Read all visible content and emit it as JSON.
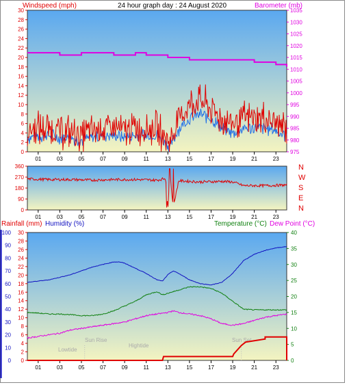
{
  "title": "24 hour graph day : 24 August 2020",
  "colors": {
    "wind": "#e00000",
    "gust_avg": "#1e6ee8",
    "baro": "#e000e0",
    "humidity": "#1010c0",
    "temperature": "#108010",
    "dewpoint": "#e000e0",
    "rainfall": "#e00000",
    "bg_top": "#5aa8f0",
    "bg_bottom": "#f4f4c0"
  },
  "x_ticks": [
    "01",
    "03",
    "05",
    "07",
    "09",
    "11",
    "13",
    "15",
    "17",
    "19",
    "21",
    "23"
  ],
  "labels": {
    "windspeed": "Windspeed (mph)",
    "barometer": "Barometer (mb)",
    "rainfall": "Rainfall (mm)",
    "humidity": "Humidity (%)",
    "temperature": "Temperature (°C)",
    "dewpoint": "Dew Point (°C)",
    "lowtide": "Lowtide",
    "sunrise": "Sun Rise",
    "hightide": "Hightide",
    "sunset": "Sun Set"
  },
  "direction_letters": [
    "N",
    "W",
    "S",
    "E",
    "N"
  ],
  "chart_data": [
    {
      "type": "line",
      "name": "wind_barometer",
      "xlabel": "",
      "x_range_hours": [
        0,
        24
      ],
      "wind_ticks": [
        0,
        2,
        4,
        6,
        8,
        10,
        12,
        14,
        16,
        18,
        20,
        22,
        24,
        26,
        28,
        30
      ],
      "wind_ylim": [
        0,
        30
      ],
      "baro_ticks": [
        975,
        980,
        985,
        990,
        995,
        1000,
        1005,
        1010,
        1015,
        1020,
        1025,
        1030,
        1035
      ],
      "baro_ylim": [
        975,
        1035
      ],
      "series": [
        {
          "name": "Windspeed",
          "x": [
            0,
            1,
            2,
            3,
            4,
            5,
            6,
            7,
            8,
            9,
            10,
            11,
            12,
            12.8,
            13.2,
            14,
            15,
            16,
            17,
            18,
            19,
            20,
            21,
            22,
            23,
            24
          ],
          "y": [
            4.5,
            5,
            5,
            4.5,
            4,
            3.5,
            4.5,
            5,
            5,
            4.5,
            5,
            5,
            5,
            3,
            2,
            7,
            10,
            11,
            9,
            7,
            6,
            7,
            7,
            7,
            6,
            5
          ]
        },
        {
          "name": "Average",
          "x": [
            0,
            1,
            2,
            3,
            4,
            5,
            6,
            7,
            8,
            9,
            10,
            11,
            12,
            12.8,
            13.2,
            14,
            15,
            16,
            17,
            18,
            19,
            20,
            21,
            22,
            23,
            24
          ],
          "y": [
            3,
            3.5,
            3.5,
            3,
            3,
            2.5,
            3,
            3.5,
            3.5,
            3,
            3.5,
            3.5,
            3.5,
            2,
            1,
            5,
            7,
            8,
            7,
            5,
            4,
            5,
            5,
            5,
            4.5,
            3.5
          ]
        },
        {
          "name": "Barometer",
          "x": [
            0,
            2,
            3,
            4,
            5,
            6,
            7,
            8,
            9,
            10,
            11,
            12,
            13,
            14,
            15,
            16,
            17,
            18,
            19,
            20,
            21,
            22,
            23,
            24
          ],
          "y": [
            1017,
            1017,
            1016,
            1016,
            1017,
            1017,
            1017,
            1016,
            1016,
            1017,
            1016,
            1016,
            1015,
            1015,
            1014,
            1014,
            1014,
            1014,
            1014,
            1014,
            1013,
            1013,
            1012,
            1011
          ]
        }
      ]
    },
    {
      "type": "line",
      "name": "wind_direction",
      "ylim": [
        0,
        360
      ],
      "y_ticks": [
        0,
        90,
        180,
        270,
        360
      ],
      "series": [
        {
          "name": "Direction",
          "x": [
            0,
            2,
            4,
            6,
            8,
            10,
            12,
            12.8,
            13,
            13.2,
            13.5,
            14,
            16,
            18,
            19,
            20,
            22,
            24
          ],
          "y": [
            255,
            250,
            250,
            245,
            250,
            250,
            245,
            260,
            20,
            300,
            20,
            240,
            230,
            235,
            230,
            200,
            200,
            205
          ]
        }
      ]
    },
    {
      "type": "line",
      "name": "rain_humidity_temperature",
      "humidity_ticks": [
        0,
        10,
        20,
        30,
        40,
        50,
        60,
        70,
        80,
        90,
        100
      ],
      "rain_ticks": [
        0,
        2,
        4,
        6,
        8,
        10,
        12,
        14,
        16,
        18,
        20,
        22,
        24,
        26,
        28,
        30
      ],
      "temp_ticks": [
        0,
        5,
        10,
        15,
        20,
        25,
        30,
        35,
        40
      ],
      "humidity_ylim": [
        0,
        100
      ],
      "rain_ylim": [
        0,
        30
      ],
      "temp_ylim": [
        0,
        40
      ],
      "series": [
        {
          "name": "Humidity",
          "x": [
            0,
            1,
            2,
            3,
            4,
            5,
            6,
            7,
            8,
            8.5,
            9,
            10,
            11,
            12,
            12.5,
            13,
            13.5,
            14,
            15,
            16,
            17,
            17.5,
            18,
            19,
            20,
            21,
            22,
            23,
            24
          ],
          "y": [
            61,
            62,
            63,
            65,
            67,
            70,
            73,
            75,
            77,
            77,
            76,
            72,
            68,
            63,
            62,
            67,
            70,
            68,
            63,
            60,
            59,
            60,
            61,
            68,
            78,
            83,
            86,
            88,
            89
          ]
        },
        {
          "name": "Temperature",
          "x": [
            0,
            1,
            2,
            3,
            4,
            5,
            6,
            7,
            8,
            9,
            10,
            11,
            12,
            12.5,
            13,
            14,
            15,
            16,
            17,
            18,
            19,
            20,
            21,
            22,
            23,
            24
          ],
          "y": [
            15,
            14.8,
            14.5,
            14.5,
            14.3,
            14,
            14,
            14.5,
            15.5,
            17,
            18.5,
            20.5,
            21.5,
            20.5,
            21,
            22,
            23,
            23,
            22.5,
            21,
            18.5,
            16,
            15.8,
            15.8,
            15.8,
            15.8
          ]
        },
        {
          "name": "Dew Point",
          "x": [
            0,
            1,
            2,
            3,
            4,
            5,
            6,
            7,
            8,
            9,
            10,
            11,
            12,
            13,
            13.5,
            14,
            15,
            16,
            17,
            18,
            19,
            20,
            21,
            22,
            23,
            24
          ],
          "y": [
            7,
            7.5,
            8,
            8.5,
            9.5,
            10,
            10.5,
            11,
            11.5,
            12,
            13,
            14,
            14.5,
            15,
            15.5,
            15,
            14.5,
            14,
            13,
            11.5,
            11,
            11.5,
            12.5,
            13.5,
            14,
            14.5
          ]
        },
        {
          "name": "Rainfall",
          "x": [
            0,
            12.5,
            12.6,
            13,
            19,
            19.1,
            19.8,
            20.2,
            22,
            22,
            23,
            24
          ],
          "y": [
            0,
            0,
            0.9,
            0.9,
            0.9,
            1.5,
            3.5,
            4.3,
            5,
            5.5,
            5.5,
            5.5
          ]
        }
      ]
    }
  ]
}
